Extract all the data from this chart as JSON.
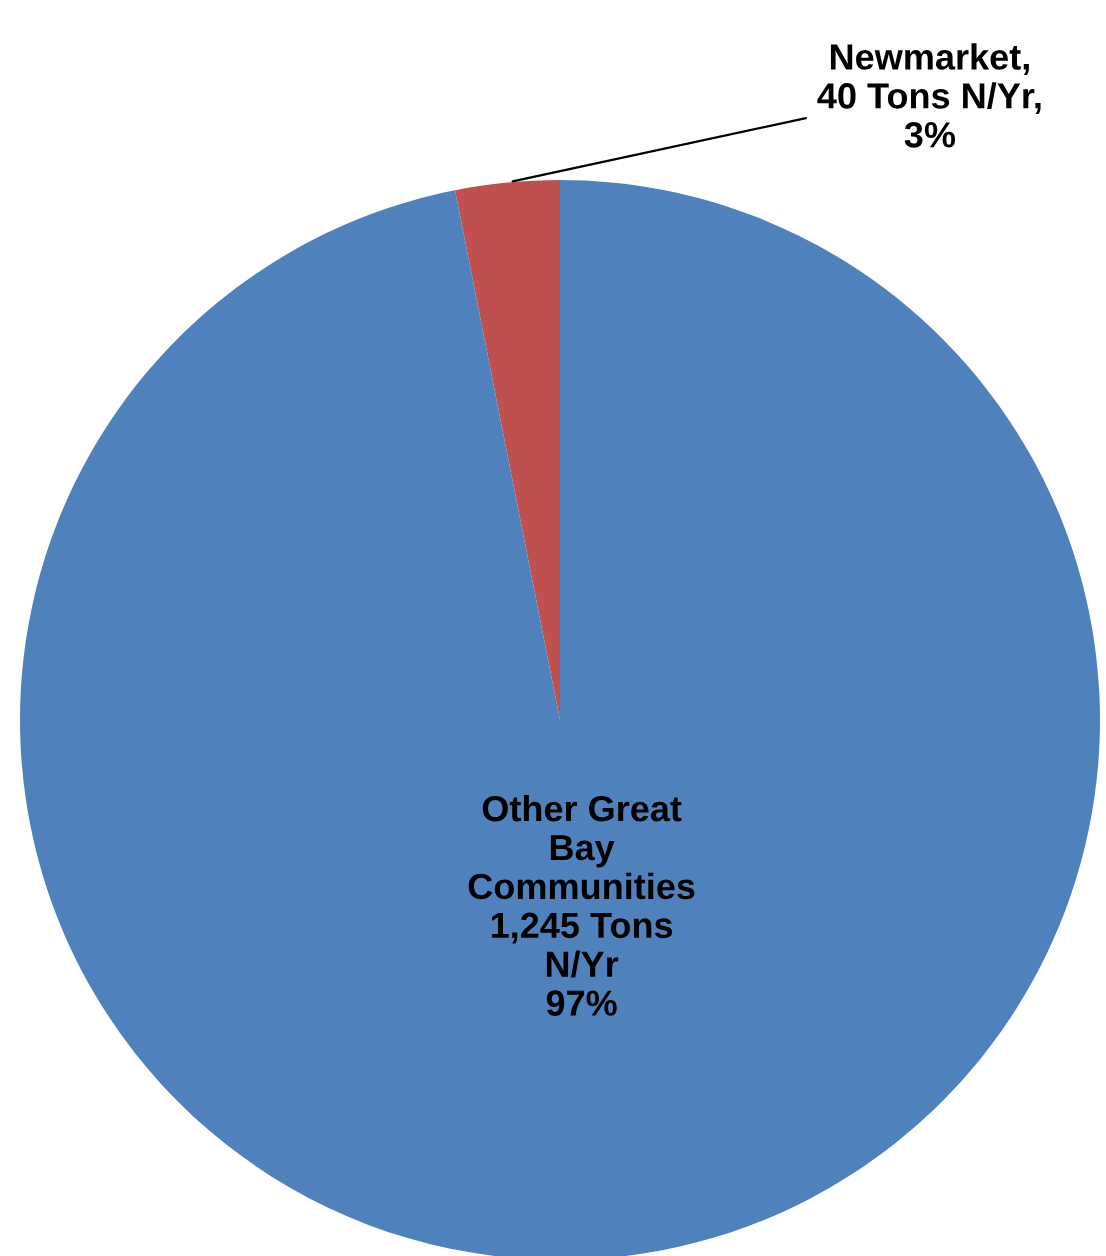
{
  "chart_data": {
    "type": "pie",
    "categories": [
      "Newmarket",
      "Other Great Bay Communities"
    ],
    "values": [
      40,
      1245
    ],
    "colors": [
      "#c0504d",
      "#4f81bd"
    ],
    "value_labels": [
      ",\n40 Tons N/Yr,\n3%",
      "\n1,245 Tons\nN/Yr\n97%"
    ],
    "legend": false
  }
}
